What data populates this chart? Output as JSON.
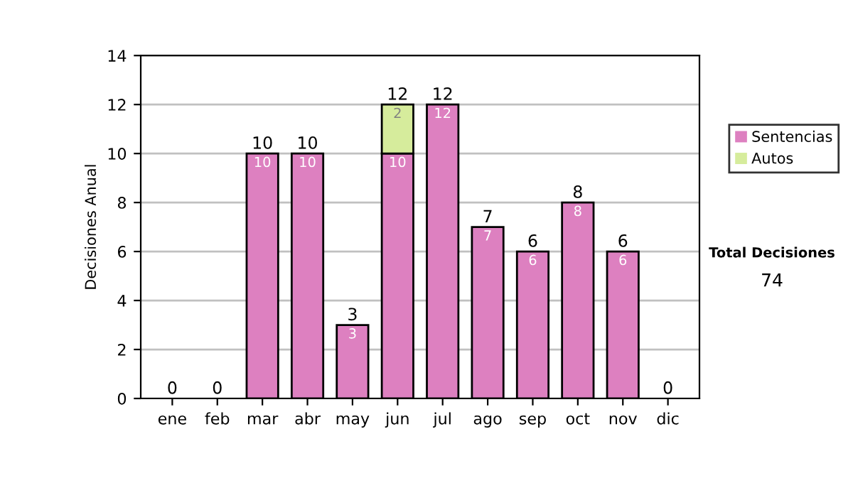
{
  "chart_data": {
    "type": "bar",
    "stacked": true,
    "ylabel": "Decisiones Anual",
    "categories": [
      "ene",
      "feb",
      "mar",
      "abr",
      "may",
      "jun",
      "jul",
      "ago",
      "sep",
      "oct",
      "nov",
      "dic"
    ],
    "series": [
      {
        "name": "Sentencias",
        "color": "#dd80c0",
        "values": [
          0,
          0,
          10,
          10,
          3,
          10,
          12,
          7,
          6,
          8,
          6,
          0
        ],
        "value_labels": [
          null,
          null,
          "10",
          "10",
          "3",
          "10",
          "12",
          "7",
          "6",
          "8",
          "6",
          null
        ]
      },
      {
        "name": "Autos",
        "color": "#d6ec9c",
        "values": [
          0,
          0,
          0,
          0,
          0,
          2,
          0,
          0,
          0,
          0,
          0,
          0
        ],
        "value_labels": [
          null,
          null,
          null,
          null,
          null,
          "2",
          null,
          null,
          null,
          null,
          null,
          null
        ]
      }
    ],
    "totals": [
      "0",
      "0",
      "10",
      "10",
      "3",
      "12",
      "12",
      "7",
      "6",
      "8",
      "6",
      "0"
    ],
    "ylim": [
      0,
      14
    ],
    "yticks": [
      0,
      2,
      4,
      6,
      8,
      10,
      12,
      14
    ],
    "grid": "y",
    "legend": "right",
    "annotations": [
      "Total Decisiones",
      "74"
    ]
  }
}
